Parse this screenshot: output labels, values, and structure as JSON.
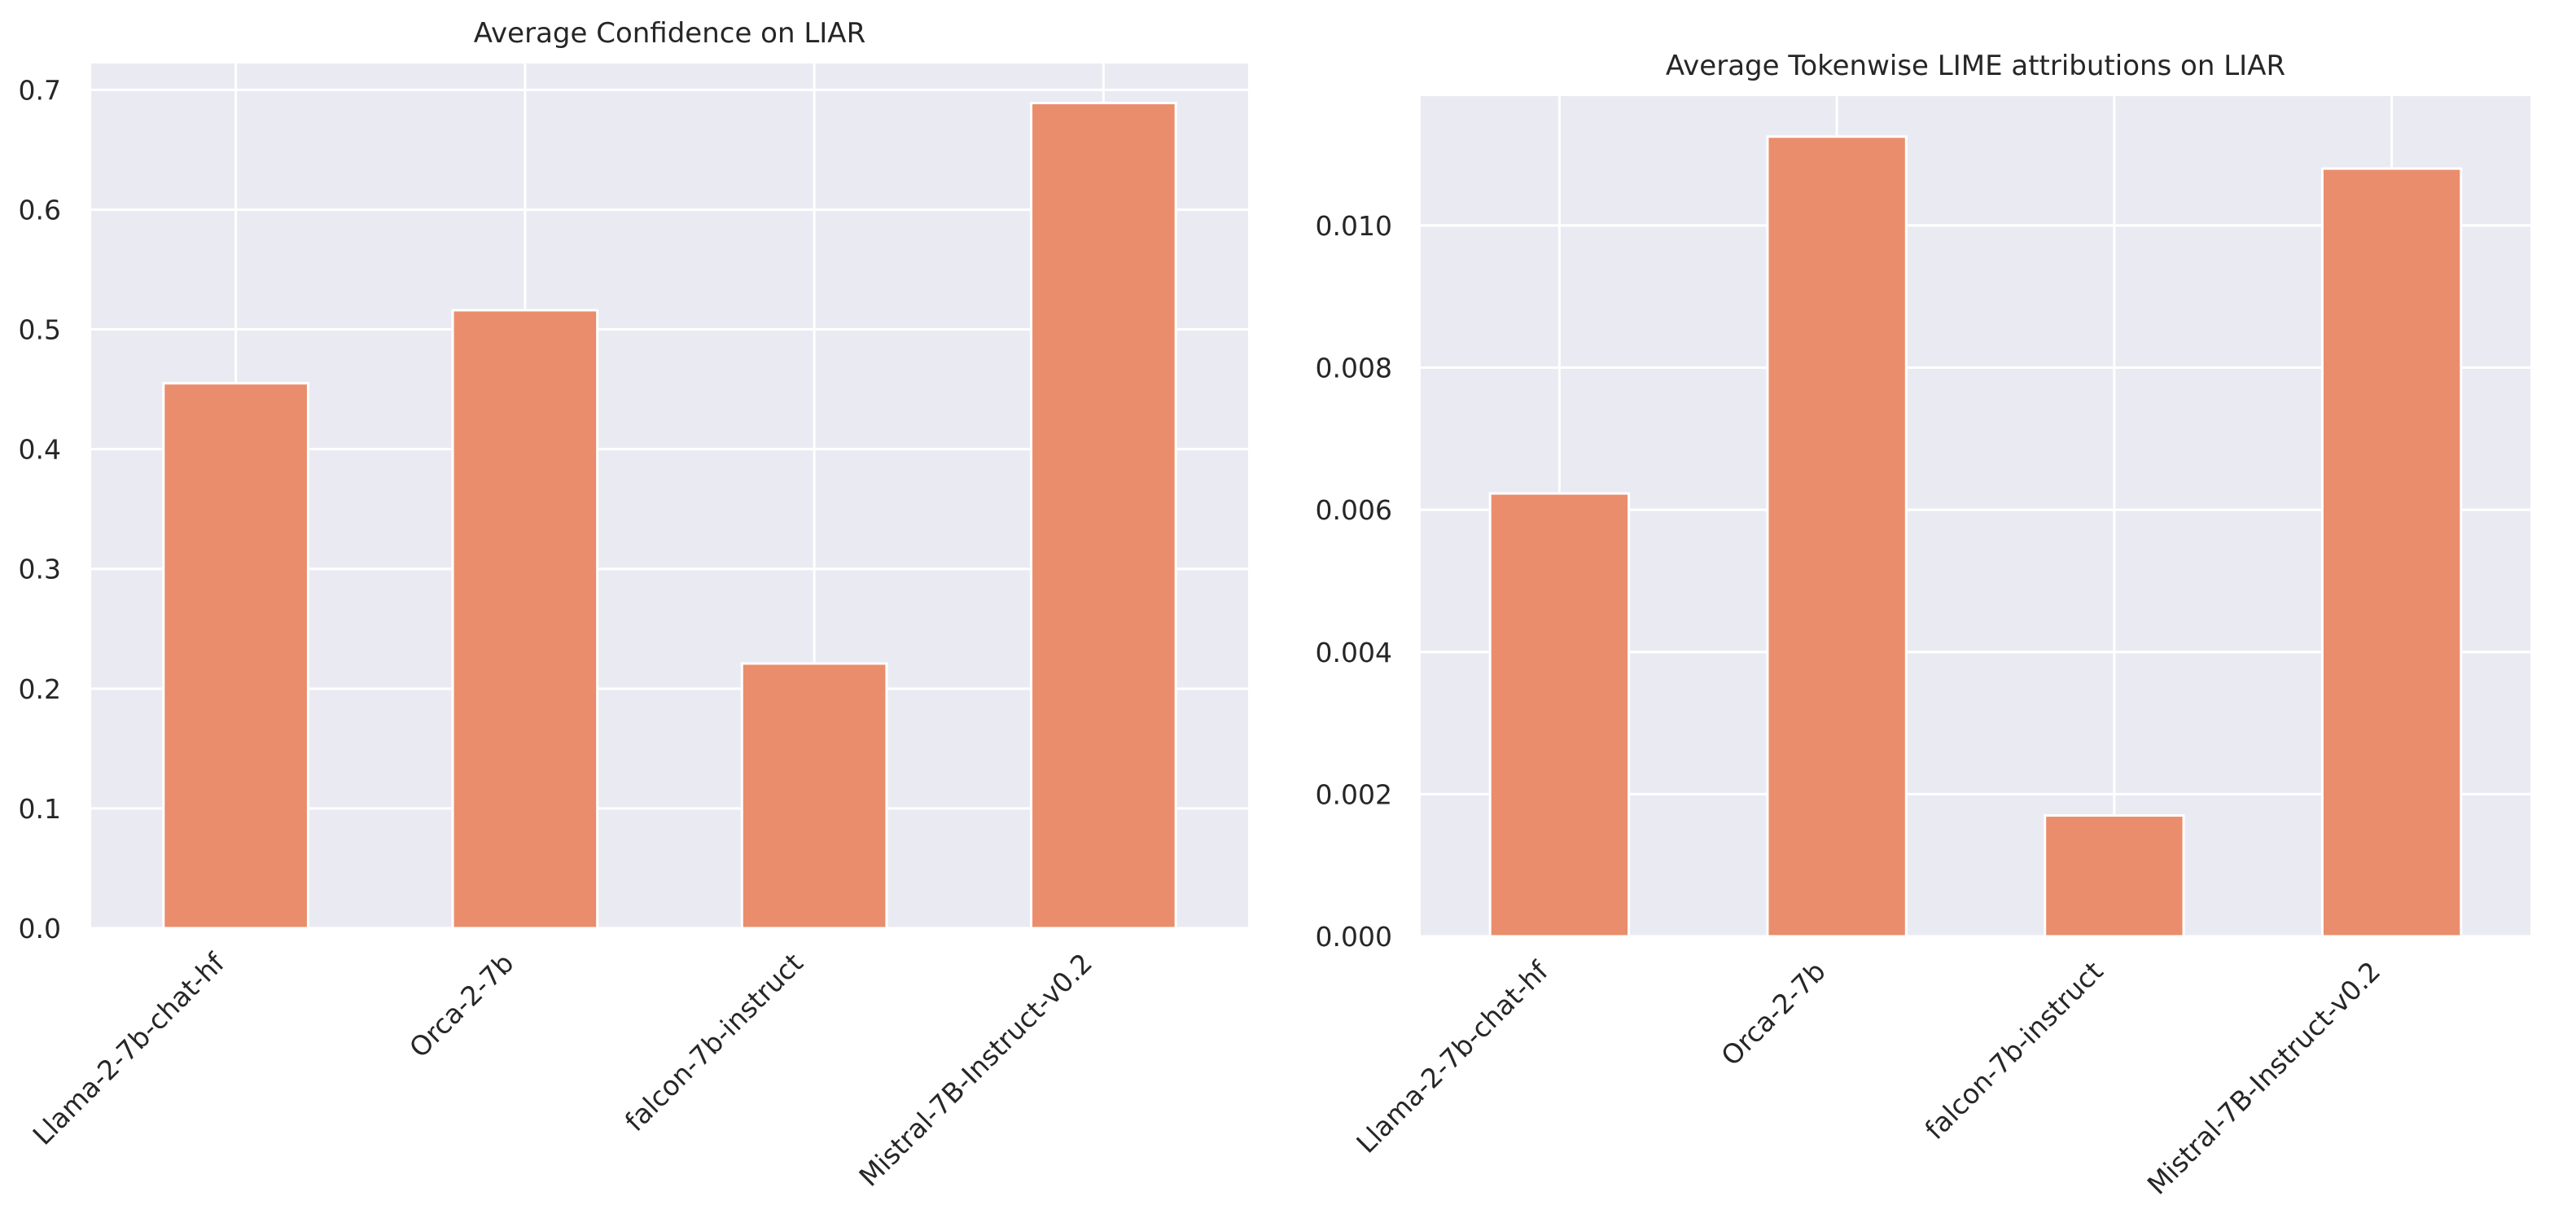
{
  "chart_data": [
    {
      "type": "bar",
      "title": "Average Confidence on LIAR",
      "categories": [
        "Llama-2-7b-chat-hf",
        "Orca-2-7b",
        "falcon-7b-instruct",
        "Mistral-7B-Instruct-v0.2"
      ],
      "values": [
        0.455,
        0.516,
        0.221,
        0.689
      ],
      "xlabel": "",
      "ylabel": "",
      "ylim": [
        0,
        0.722
      ],
      "yticks": [
        0.0,
        0.1,
        0.2,
        0.3,
        0.4,
        0.5,
        0.6,
        0.7
      ],
      "ytick_labels": [
        "0.0",
        "0.1",
        "0.2",
        "0.3",
        "0.4",
        "0.5",
        "0.6",
        "0.7"
      ],
      "grid": true,
      "bar_color": "#ea8d6c",
      "background": "#eaeaf2"
    },
    {
      "type": "bar",
      "title": "Average Tokenwise LIME attributions on LIAR",
      "categories": [
        "Llama-2-7b-chat-hf",
        "Orca-2-7b",
        "falcon-7b-instruct",
        "Mistral-7B-Instruct-v0.2"
      ],
      "values": [
        0.00623,
        0.01125,
        0.0017,
        0.0108
      ],
      "xlabel": "",
      "ylabel": "",
      "ylim": [
        0,
        0.01182
      ],
      "yticks": [
        0.0,
        0.002,
        0.004,
        0.006,
        0.008,
        0.01
      ],
      "ytick_labels": [
        "0.000",
        "0.002",
        "0.004",
        "0.006",
        "0.008",
        "0.010"
      ],
      "grid": true,
      "bar_color": "#ea8d6c",
      "background": "#eaeaf2"
    }
  ]
}
